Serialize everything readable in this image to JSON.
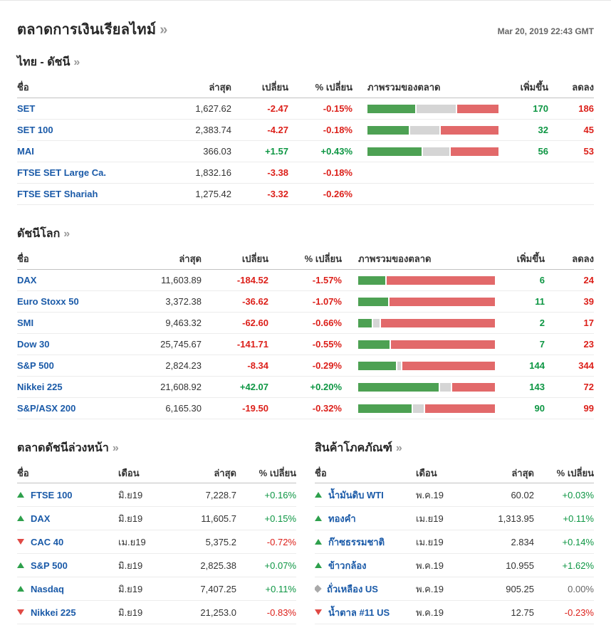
{
  "page": {
    "title": "ตลาดการเงินเรียลไทม์",
    "arrow": "»",
    "timestamp": "Mar 20, 2019 22:43 GMT"
  },
  "colors": {
    "link": "#1a5aa8",
    "positive": "#0d9643",
    "negative": "#dc1f19",
    "neutral": "#666666",
    "bar_green": "#4da153",
    "bar_gray": "#d5d5d5",
    "bar_red": "#e2696a"
  },
  "columns_main": {
    "name": "ชื่อ",
    "last": "ล่าสุด",
    "change": "เปลี่ยน",
    "pct": "% เปลี่ยน",
    "overview": "ภาพรวมของตลาด",
    "adv": "เพิ่มขึ้น",
    "dec": "ลดลง"
  },
  "columns_small": {
    "name": "ชื่อ",
    "month": "เดือน",
    "last": "ล่าสุด",
    "pct": "% เปลี่ยน"
  },
  "thai_indices": {
    "heading": "ไทย - ดัชนี",
    "rows": [
      {
        "name": "SET",
        "last": "1,627.62",
        "change": "-2.47",
        "pct": "-0.15%",
        "bar": {
          "green": 37,
          "gray": 31,
          "red": 32
        },
        "adv": "170",
        "dec": "186"
      },
      {
        "name": "SET 100",
        "last": "2,383.74",
        "change": "-4.27",
        "pct": "-0.18%",
        "bar": {
          "green": 32,
          "gray": 23,
          "red": 45
        },
        "adv": "32",
        "dec": "45"
      },
      {
        "name": "MAI",
        "last": "366.03",
        "change": "+1.57",
        "pct": "+0.43%",
        "bar": {
          "green": 42,
          "gray": 21,
          "red": 37
        },
        "adv": "56",
        "dec": "53"
      },
      {
        "name": "FTSE SET Large Ca.",
        "last": "1,832.16",
        "change": "-3.38",
        "pct": "-0.18%",
        "bar": null,
        "adv": "",
        "dec": ""
      },
      {
        "name": "FTSE SET Shariah",
        "last": "1,275.42",
        "change": "-3.32",
        "pct": "-0.26%",
        "bar": null,
        "adv": "",
        "dec": ""
      }
    ]
  },
  "world_indices": {
    "heading": "ดัชนีโลก",
    "rows": [
      {
        "name": "DAX",
        "last": "11,603.89",
        "change": "-184.52",
        "pct": "-1.57%",
        "bar": {
          "green": 20,
          "gray": 0,
          "red": 80
        },
        "adv": "6",
        "dec": "24"
      },
      {
        "name": "Euro Stoxx 50",
        "last": "3,372.38",
        "change": "-36.62",
        "pct": "-1.07%",
        "bar": {
          "green": 22,
          "gray": 0,
          "red": 78
        },
        "adv": "11",
        "dec": "39"
      },
      {
        "name": "SMI",
        "last": "9,463.32",
        "change": "-62.60",
        "pct": "-0.66%",
        "bar": {
          "green": 10,
          "gray": 5,
          "red": 85
        },
        "adv": "2",
        "dec": "17"
      },
      {
        "name": "Dow 30",
        "last": "25,745.67",
        "change": "-141.71",
        "pct": "-0.55%",
        "bar": {
          "green": 23,
          "gray": 0,
          "red": 77
        },
        "adv": "7",
        "dec": "23"
      },
      {
        "name": "S&P 500",
        "last": "2,824.23",
        "change": "-8.34",
        "pct": "-0.29%",
        "bar": {
          "green": 28,
          "gray": 3,
          "red": 69
        },
        "adv": "144",
        "dec": "344"
      },
      {
        "name": "Nikkei 225",
        "last": "21,608.92",
        "change": "+42.07",
        "pct": "+0.20%",
        "bar": {
          "green": 60,
          "gray": 8,
          "red": 32
        },
        "adv": "143",
        "dec": "72"
      },
      {
        "name": "S&P/ASX 200",
        "last": "6,165.30",
        "change": "-19.50",
        "pct": "-0.32%",
        "bar": {
          "green": 40,
          "gray": 8,
          "red": 52
        },
        "adv": "90",
        "dec": "99"
      }
    ]
  },
  "futures": {
    "heading": "ตลาดดัชนีล่วงหน้า",
    "rows": [
      {
        "name": "FTSE 100",
        "dir": "up",
        "month": "มิ.ย19",
        "last": "7,228.7",
        "pct": "+0.16%"
      },
      {
        "name": "DAX",
        "dir": "up",
        "month": "มิ.ย19",
        "last": "11,605.7",
        "pct": "+0.15%"
      },
      {
        "name": "CAC 40",
        "dir": "down",
        "month": "เม.ย19",
        "last": "5,375.2",
        "pct": "-0.72%"
      },
      {
        "name": "S&P 500",
        "dir": "up",
        "month": "มิ.ย19",
        "last": "2,825.38",
        "pct": "+0.07%"
      },
      {
        "name": "Nasdaq",
        "dir": "up",
        "month": "มิ.ย19",
        "last": "7,407.25",
        "pct": "+0.11%"
      },
      {
        "name": "Nikkei 225",
        "dir": "down",
        "month": "มิ.ย19",
        "last": "21,253.0",
        "pct": "-0.83%"
      }
    ]
  },
  "commodities": {
    "heading": "สินค้าโภคภัณฑ์",
    "rows": [
      {
        "name": "น้ำมันดิบ WTI",
        "dir": "up",
        "month": "พ.ค.19",
        "last": "60.02",
        "pct": "+0.03%"
      },
      {
        "name": "ทองคำ",
        "dir": "up",
        "month": "เม.ย19",
        "last": "1,313.95",
        "pct": "+0.11%"
      },
      {
        "name": "ก๊าซธรรมชาติ",
        "dir": "up",
        "month": "เม.ย19",
        "last": "2.834",
        "pct": "+0.14%"
      },
      {
        "name": "ข้าวกล้อง",
        "dir": "up",
        "month": "พ.ค.19",
        "last": "10.955",
        "pct": "+1.62%"
      },
      {
        "name": "ถั่วเหลือง US",
        "dir": "flat",
        "month": "พ.ค.19",
        "last": "905.25",
        "pct": "0.00%"
      },
      {
        "name": "น้ำตาล #11 US",
        "dir": "down",
        "month": "พ.ค.19",
        "last": "12.75",
        "pct": "-0.23%"
      }
    ]
  }
}
